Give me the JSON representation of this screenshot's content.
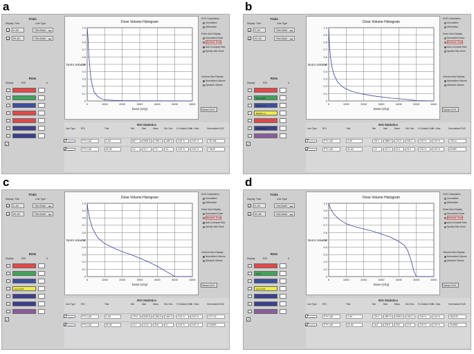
{
  "panels": [
    {
      "letter": "a",
      "trials_title": "Trials",
      "trial_header": {
        "display": "Display",
        "trial": "Trial",
        "line_type": "Line Type"
      },
      "trials": [
        {
          "name": "0–50",
          "line": "Thin Solid",
          "checked": true
        },
        {
          "name": "50–80",
          "line": "Thin Solid",
          "checked": true
        }
      ],
      "rois_title": "ROIs",
      "roi_header": {
        "display": "Display",
        "roi": "ROI",
        "num": "#"
      },
      "rois": [
        {
          "label": "",
          "color": "#e34848"
        },
        {
          "label": "",
          "color": "#3fa35a"
        },
        {
          "label": "",
          "color": "#3c4fa0"
        },
        {
          "label": "",
          "color": "#e34848"
        },
        {
          "label": "",
          "color": "#e34848"
        },
        {
          "label": "",
          "color": "#3a3f8c"
        },
        {
          "label": "",
          "color": "#3a3f8c"
        }
      ],
      "chart_data": {
        "type": "line",
        "title": "Dose Volume Histogram",
        "xlabel": "Dose (cGy)",
        "ylabel": "Norm.Volume",
        "xlim": [
          0,
          6000
        ],
        "ylim": [
          0,
          1.0
        ],
        "xticks": [
          "0",
          "1000",
          "2000",
          "3000",
          "4000",
          "5000",
          "6000"
        ],
        "yticks": [
          "0",
          "0.1",
          "0.2",
          "0.3",
          "0.4",
          "0.5",
          "0.6",
          "0.7",
          "0.8",
          "0.9",
          "1.0"
        ],
        "series": [
          {
            "x": [
              0,
              50,
              100,
              200,
              300,
              400,
              600,
              800,
              1000,
              1500,
              2000,
              3000,
              6000
            ],
            "y": [
              1.0,
              0.85,
              0.6,
              0.33,
              0.2,
              0.12,
              0.06,
              0.03,
              0.015,
              0.008,
              0.004,
              0.002,
              0.0
            ]
          }
        ]
      },
      "dvh_calc": {
        "title": "DVH Calculation",
        "options": [
          "Cumulative",
          "Differential"
        ],
        "selected": 0
      },
      "dose_axis": {
        "title": "Dose Axis Display",
        "options": [
          "Normalized Dose",
          "Absolute Dose",
          "Auto-Compute Max",
          "Specify Max Dose"
        ],
        "highlight": 1,
        "selected": 2
      },
      "volume_axis": {
        "title": "Volume Axis Display",
        "options": [
          "Normalized Volume",
          "Absolute Volume"
        ],
        "selected": 0
      },
      "tabular_button": "Tabular DVH...",
      "stats": {
        "title": "ROI Statistics",
        "headers": [
          "Line Type",
          "ROI",
          "Trial",
          "Min",
          "Max",
          "Mean",
          "Std. Dev.",
          "% Outside Grid",
          "% > Max",
          "Generalized EUD"
        ],
        "rows": [
          [
            "",
            "PTV LAD",
            "0–50",
            "86.7",
            "5948.8",
            "1789.1",
            "1480.0",
            "0.00 %",
            "0.00 %",
            "730.458"
          ],
          [
            "",
            "PTV LAD",
            "50–80",
            "1.6",
            "21.1",
            "7.9",
            "3.4",
            "0.00 %",
            "0.00 %",
            "7.5029"
          ]
        ]
      }
    },
    {
      "letter": "b",
      "trials_title": "Trials",
      "trial_header": {
        "display": "Display",
        "trial": "Trial",
        "line_type": "Line Type"
      },
      "trials": [
        {
          "name": "0–50",
          "line": "Thin Solid",
          "checked": true
        },
        {
          "name": "50–64",
          "line": "Thin Solid",
          "checked": true
        }
      ],
      "rois_title": "ROIs",
      "roi_header": {
        "display": "Display",
        "roi": "ROI",
        "num": "#"
      },
      "rois": [
        {
          "label": "",
          "color": "#e34848"
        },
        {
          "label": "Boost RNI",
          "color": "#3fa35a"
        },
        {
          "label": "Rectum ct",
          "color": "#3c4fa0"
        },
        {
          "label": "Bladder pt",
          "color": "#f0ec45"
        },
        {
          "label": "",
          "color": "#e34848"
        },
        {
          "label": "Intestine ct",
          "color": "#3a3f8c"
        },
        {
          "label": "",
          "color": "#8a5c9e"
        }
      ],
      "chart_data": {
        "type": "line",
        "title": "Dose Volume Histogram",
        "xlabel": "Dose (cGy)",
        "ylabel": "Norm.Volume",
        "xlim": [
          0,
          6000
        ],
        "ylim": [
          0,
          1.0
        ],
        "xticks": [
          "0",
          "1000",
          "2000",
          "3000",
          "4000",
          "5000",
          "6000"
        ],
        "yticks": [
          "0",
          "0.1",
          "0.2",
          "0.3",
          "0.4",
          "0.5",
          "0.6",
          "0.7",
          "0.8",
          "0.9",
          "1.0"
        ],
        "series": [
          {
            "x": [
              0,
              50,
              100,
              200,
              300,
              500,
              800,
              1200,
              1800,
              2500,
              3500,
              4500,
              5000,
              6000
            ],
            "y": [
              1.0,
              0.75,
              0.6,
              0.45,
              0.36,
              0.26,
              0.19,
              0.14,
              0.1,
              0.07,
              0.04,
              0.02,
              0.005,
              0.0
            ]
          }
        ]
      },
      "dvh_calc": {
        "title": "DVH Calculation",
        "options": [
          "Cumulative",
          "Differential"
        ],
        "selected": 0
      },
      "dose_axis": {
        "title": "Dose Axis Display",
        "options": [
          "Normalized Dose",
          "Absolute Dose",
          "Auto-Compute Max",
          "Specify Max Dose"
        ],
        "highlight": 1,
        "selected": 2
      },
      "volume_axis": {
        "title": "Volume Axis Display",
        "options": [
          "Normalized Volume",
          "Absolute Volume"
        ],
        "selected": 0
      },
      "tabular_button": "Tabular DVH...",
      "stats": {
        "title": "ROI Statistics",
        "headers": [
          "Line Type",
          "ROI",
          "Trial",
          "Min",
          "Max",
          "Mean",
          "Std. Dev.",
          "% Outside Grid",
          "% > Max",
          "Generalized EUD"
        ],
        "rows": [
          [
            "",
            "PTV LAD",
            "0–50",
            "109.2",
            "4866.9",
            "713.0",
            "935.2",
            "0.00 %",
            "0.00 %",
            "736.04"
          ],
          [
            "",
            "PTV LAD",
            "50–64",
            "1.6",
            "417.1",
            "20.1",
            "31.0",
            "0.00 %",
            "0.00 %",
            "63.980"
          ]
        ]
      }
    },
    {
      "letter": "c",
      "trials_title": "Trials",
      "trial_header": {
        "display": "Display",
        "trial": "Trial",
        "line_type": "Line Type"
      },
      "trials": [
        {
          "name": "0–50",
          "line": "Thin Solid",
          "checked": true
        },
        {
          "name": "50–80",
          "line": "Thin Solid",
          "checked": true
        }
      ],
      "rois_title": "ROIs",
      "roi_header": {
        "display": "Display",
        "roi": "ROI",
        "num": "#"
      },
      "rois": [
        {
          "label": "",
          "color": "#e34848"
        },
        {
          "label": "",
          "color": "#3fa35a"
        },
        {
          "label": "",
          "color": "#3c4fa0"
        },
        {
          "label": "boost RNI",
          "color": "#f0ec45"
        },
        {
          "label": "",
          "color": "#3a3f8c"
        },
        {
          "label": "",
          "color": "#3a3f8c"
        },
        {
          "label": "",
          "color": "#8a5c9e"
        }
      ],
      "chart_data": {
        "type": "line",
        "title": "Dose Volume Histogram",
        "xlabel": "Dose (cGy)",
        "ylabel": "Norm.Volume",
        "xlim": [
          0,
          6000
        ],
        "ylim": [
          0,
          1.0
        ],
        "xticks": [
          "0",
          "1000",
          "2000",
          "3000",
          "4000",
          "5000",
          "6000"
        ],
        "yticks": [
          "0",
          "0.1",
          "0.2",
          "0.3",
          "0.4",
          "0.5",
          "0.6",
          "0.7",
          "0.8",
          "0.9",
          "1.0"
        ],
        "series": [
          {
            "x": [
              0,
              50,
              150,
              300,
              600,
              1000,
              1500,
              2000,
              2500,
              3000,
              3500,
              4000,
              4500,
              4800,
              5000,
              6000
            ],
            "y": [
              1.0,
              0.9,
              0.78,
              0.66,
              0.53,
              0.45,
              0.39,
              0.34,
              0.3,
              0.25,
              0.2,
              0.14,
              0.07,
              0.03,
              0.0,
              0.0
            ]
          }
        ]
      },
      "dvh_calc": {
        "title": "DVH Calculation",
        "options": [
          "Cumulative",
          "Differential"
        ],
        "selected": 0
      },
      "dose_axis": {
        "title": "Dose Axis Display",
        "options": [
          "Normalized Dose",
          "Absolute Dose",
          "Auto-Compute Max",
          "Specify Max Dose"
        ],
        "highlight": 1,
        "selected": 2
      },
      "volume_axis": {
        "title": "Volume Axis Display",
        "options": [
          "Normalized Volume",
          "Absolute Volume"
        ],
        "selected": 0
      },
      "tabular_button": "Tabular DVH...",
      "stats": {
        "title": "ROI Statistics",
        "headers": [
          "Line Type",
          "ROI",
          "Trial",
          "Min",
          "Max",
          "Mean",
          "Std. Dev.",
          "% Outside Grid",
          "% > Max",
          "Generalized EUD"
        ],
        "rows": [
          [
            "",
            "PTV LAD",
            "0–50",
            "170.6",
            "5196.8",
            "1284.5",
            "1461.0",
            "0.00 %",
            "0.00 %",
            "1277.00"
          ],
          [
            "",
            "PTV LAD",
            "50–80",
            "14.1",
            "111.6",
            "33.8",
            "5.1",
            "0.00 %",
            "0.00 %",
            "22.8890"
          ]
        ]
      }
    },
    {
      "letter": "d",
      "trials_title": "Trials",
      "trial_header": {
        "display": "Display",
        "trial": "Trial",
        "line_type": "Line Type"
      },
      "trials": [
        {
          "name": "0–50",
          "line": "Thin Solid",
          "checked": true
        },
        {
          "name": "50–80",
          "line": "Thin Solid",
          "checked": true
        }
      ],
      "rois_title": "ROIs",
      "roi_header": {
        "display": "Display",
        "roi": "ROI",
        "num": "#"
      },
      "rois": [
        {
          "label": "",
          "color": "#e34848"
        },
        {
          "label": "Lenti",
          "color": "#3fa35a"
        },
        {
          "label": "",
          "color": "#3c4fa0"
        },
        {
          "label": "boost RNI",
          "color": "#f0ec45"
        },
        {
          "label": "",
          "color": "#3a3f8c"
        },
        {
          "label": "",
          "color": "#3a3f8c"
        },
        {
          "label": "",
          "color": "#8a5c9e"
        }
      ],
      "chart_data": {
        "type": "line",
        "title": "Dose Volume Histogram",
        "xlabel": "Dose (cGy)",
        "ylabel": "Norm.Volume",
        "xlim": [
          0,
          6000
        ],
        "ylim": [
          0,
          1.0
        ],
        "xticks": [
          "0",
          "1000",
          "2000",
          "3000",
          "4000",
          "5000",
          "6000"
        ],
        "yticks": [
          "0",
          "0.1",
          "0.2",
          "0.3",
          "0.4",
          "0.5",
          "0.6",
          "0.7",
          "0.8",
          "0.9",
          "1.0"
        ],
        "series": [
          {
            "x": [
              0,
              100,
              300,
              600,
              1000,
              1500,
              2000,
              2500,
              3000,
              3500,
              4000,
              4300,
              4500,
              4700,
              4850,
              5000,
              6000
            ],
            "y": [
              1.0,
              0.93,
              0.85,
              0.78,
              0.72,
              0.68,
              0.65,
              0.62,
              0.58,
              0.54,
              0.48,
              0.43,
              0.36,
              0.22,
              0.08,
              0.0,
              0.0
            ]
          }
        ]
      },
      "dvh_calc": {
        "title": "DVH Calculation",
        "options": [
          "Cumulative",
          "Differential"
        ],
        "selected": 0
      },
      "dose_axis": {
        "title": "Dose Axis Display",
        "options": [
          "Normalized Dose",
          "Absolute Dose",
          "Auto-Compute Max",
          "Specify Max Dose"
        ],
        "highlight": 1,
        "selected": 2
      },
      "volume_axis": {
        "title": "Volume Axis Display",
        "options": [
          "Normalized Volume",
          "Absolute Volume"
        ],
        "selected": 0
      },
      "tabular_button": "Tabular DVH...",
      "stats": {
        "title": "ROI Statistics",
        "headers": [
          "Line Type",
          "ROI",
          "Trial",
          "Min",
          "Max",
          "Mean",
          "Std. Dev.",
          "% Outside Grid",
          "% > Max",
          "Generalized EUD"
        ],
        "rows": [
          [
            "",
            "PTV LAD",
            "0–50",
            "122.4",
            "4957.5",
            "2436.5",
            "1621.1",
            "0.00 %",
            "0.00 %",
            "2425.53"
          ],
          [
            "",
            "PTV LAD",
            "50–80",
            "16.6",
            "206.5",
            "33.0",
            "37.8",
            "0.00 %",
            "0.00 %",
            "33.8884"
          ]
        ]
      }
    }
  ]
}
